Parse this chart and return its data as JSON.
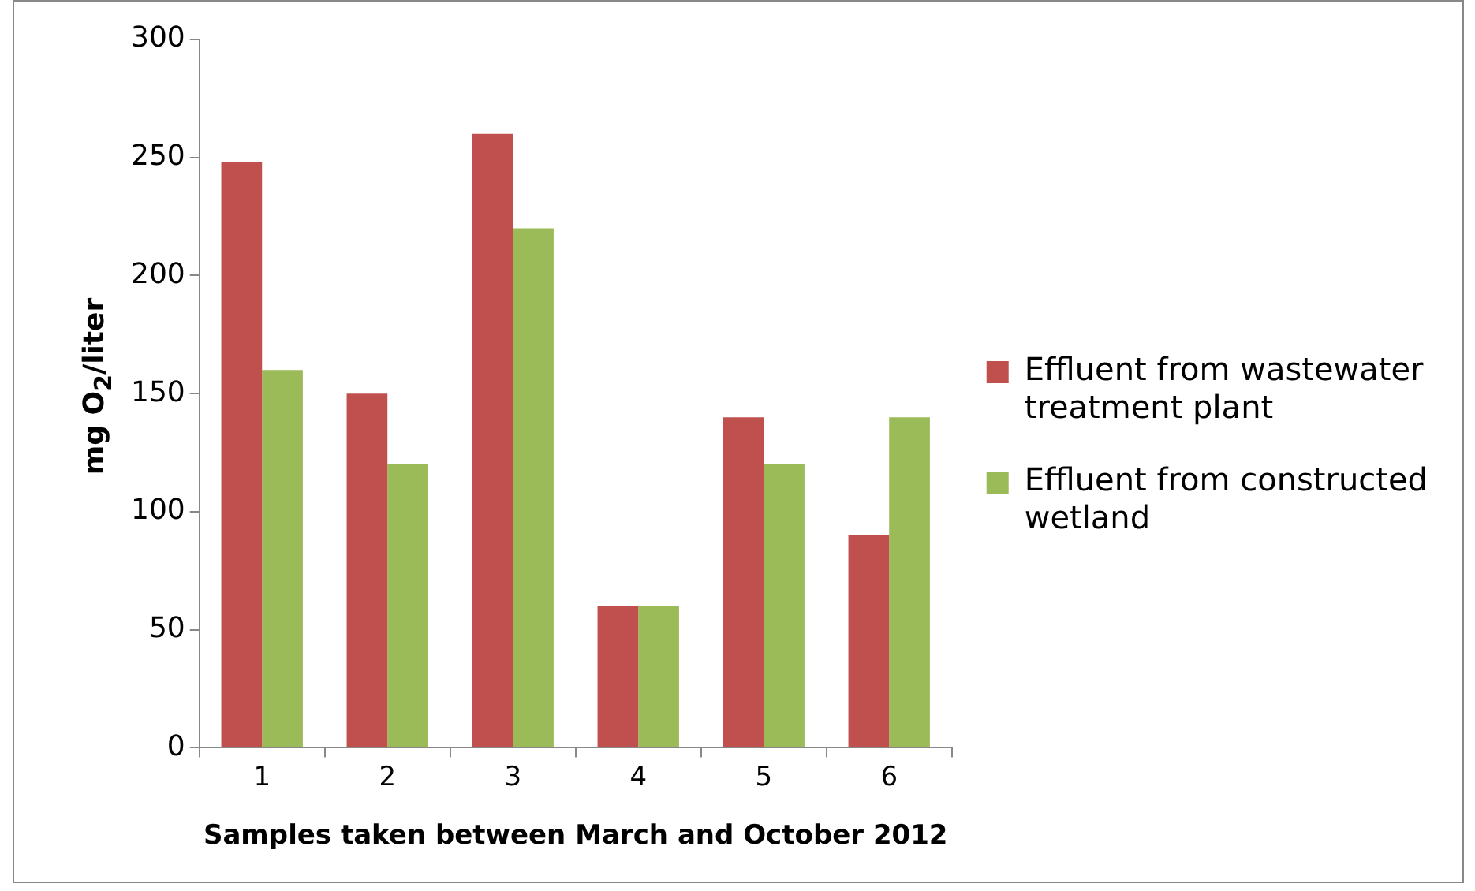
{
  "chart_data": {
    "type": "bar",
    "xlabel": "Samples taken between March and October 2012",
    "ylabel": "mg O$_{2}$/liter",
    "categories": [
      "1",
      "2",
      "3",
      "4",
      "5",
      "6"
    ],
    "series": [
      {
        "name": "Effluent from wastewater treatment plant",
        "color": "#c0504d",
        "values": [
          248,
          150,
          260,
          60,
          140,
          90
        ]
      },
      {
        "name": "Effluent from constructed wetland",
        "color": "#9bbb59",
        "values": [
          160,
          120,
          220,
          60,
          120,
          140
        ]
      }
    ],
    "ylim": [
      0,
      300
    ],
    "yticks": [
      0,
      50,
      100,
      150,
      200,
      250,
      300
    ],
    "grid": false,
    "legend": "right"
  }
}
